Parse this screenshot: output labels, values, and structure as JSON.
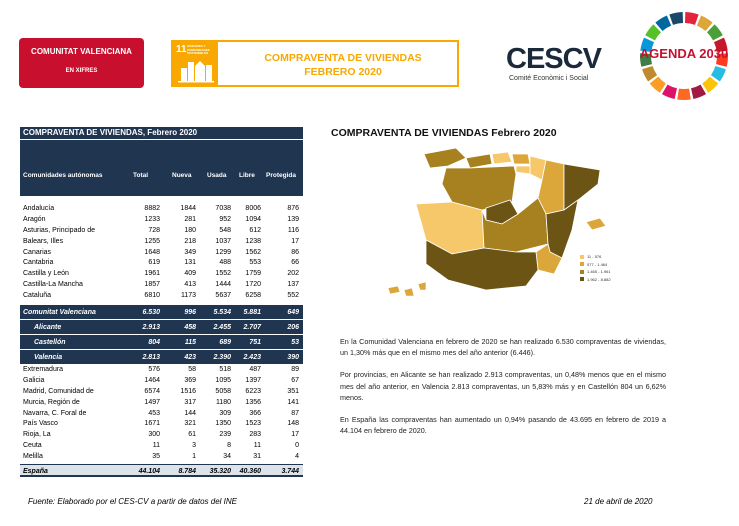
{
  "header": {
    "cv_title": "COMUNITAT VALENCIANA",
    "cv_subtitle": "EN XIFRES",
    "ods_number": "11",
    "ods_caption": "CIUDADES Y COMUNIDADES SOSTENIBLES",
    "doc_title_line1": "COMPRAVENTA DE VIVIENDAS",
    "doc_title_line2": "FEBRERO 2020",
    "cescv_logo": "CESCV",
    "cescv_sub": "Comité Econòmic i Social",
    "agenda": "AGENDA 2030"
  },
  "table": {
    "title": "COMPRAVENTA DE VIVIENDAS, Febrero 2020",
    "headers": [
      "Comunidades autónomas",
      "Total",
      "Nueva",
      "Usada",
      "Libre",
      "Protegida"
    ],
    "rows_a": [
      [
        "Andalucía",
        "8882",
        "1844",
        "7038",
        "8006",
        "876"
      ],
      [
        "Aragón",
        "1233",
        "281",
        "952",
        "1094",
        "139"
      ],
      [
        "Asturias, Principado de",
        "728",
        "180",
        "548",
        "612",
        "116"
      ],
      [
        "Balears, Illes",
        "1255",
        "218",
        "1037",
        "1238",
        "17"
      ],
      [
        "Canarias",
        "1648",
        "349",
        "1299",
        "1562",
        "86"
      ],
      [
        "Cantabria",
        "619",
        "131",
        "488",
        "553",
        "66"
      ],
      [
        "Castilla y León",
        "1961",
        "409",
        "1552",
        "1759",
        "202"
      ],
      [
        "Castilla-La Mancha",
        "1857",
        "413",
        "1444",
        "1720",
        "137"
      ],
      [
        "Cataluña",
        "6810",
        "1173",
        "5637",
        "6258",
        "552"
      ]
    ],
    "rows_cv": [
      [
        "Comunitat Valenciana",
        "6.530",
        "996",
        "5.534",
        "5.881",
        "649"
      ],
      [
        "Alicante",
        "2.913",
        "458",
        "2.455",
        "2.707",
        "206"
      ],
      [
        "Castellón",
        "804",
        "115",
        "689",
        "751",
        "53"
      ],
      [
        "Valencia",
        "2.813",
        "423",
        "2.390",
        "2.423",
        "390"
      ]
    ],
    "rows_b": [
      [
        "Extremadura",
        "576",
        "58",
        "518",
        "487",
        "89"
      ],
      [
        "Galicia",
        "1464",
        "369",
        "1095",
        "1397",
        "67"
      ],
      [
        "Madrid, Comunidad de",
        "6574",
        "1516",
        "5058",
        "6223",
        "351"
      ],
      [
        "Murcia, Región de",
        "1497",
        "317",
        "1180",
        "1356",
        "141"
      ],
      [
        "Navarra, C. Foral de",
        "453",
        "144",
        "309",
        "366",
        "87"
      ],
      [
        "País Vasco",
        "1671",
        "321",
        "1350",
        "1523",
        "148"
      ],
      [
        "Rioja, La",
        "300",
        "61",
        "239",
        "283",
        "17"
      ],
      [
        "Ceuta",
        "11",
        "3",
        "8",
        "11",
        "0"
      ],
      [
        "Melilla",
        "35",
        "1",
        "34",
        "31",
        "4"
      ]
    ],
    "total": [
      "España",
      "44.104",
      "8.784",
      "35.320",
      "40.360",
      "3.744"
    ]
  },
  "map": {
    "title": "COMPRAVENTA DE VIVIENDAS Febrero 2020",
    "legend": [
      {
        "label": "11 - 576",
        "color": "#f6c86a"
      },
      {
        "label": "577 - 1.464",
        "color": "#dca73a"
      },
      {
        "label": "1.465 - 1.961",
        "color": "#a7811f"
      },
      {
        "label": "1.962 - 8.882",
        "color": "#6b5414"
      }
    ]
  },
  "text": {
    "p1": "En la Comunidad Valenciana en febrero de 2020 se han realizado 6.530 compraventas de viviendas, un 1,30% más que en el mismo mes del año anterior (6.446).",
    "p2": "Por provincias, en Alicante se han realizado 2.913 compraventas, un 0,48% menos que en el mismo mes del año anterior, en Valencia 2.813 compraventas, un 5,83% más y en Castellón 804 un 6,62% menos.",
    "p3": "En España las compraventas han aumentado un 0,94% pasando de 43.695 en febrero de 2019 a 44.104 en febrero de 2020."
  },
  "footer": {
    "source": "Fuente: Elaborado por el CES-CV a partir de datos del INE",
    "date": "21 de abril de 2020"
  }
}
